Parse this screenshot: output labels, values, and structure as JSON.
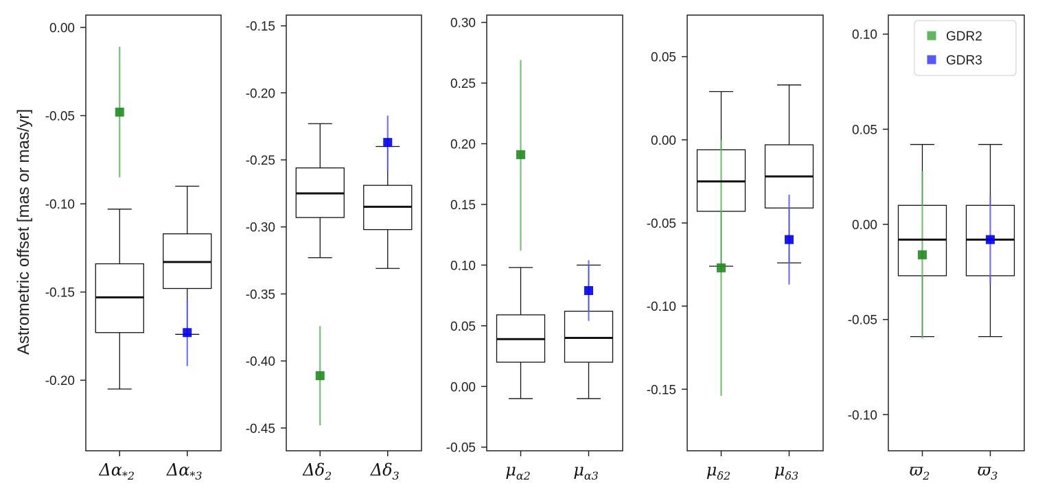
{
  "chart_data": {
    "type": "box",
    "ylabel": "Astrometric offset [mas or mas/yr]",
    "legend": {
      "placement": "top-right of last panel",
      "entries": [
        {
          "name": "GDR2",
          "color": "#2ca02c"
        },
        {
          "name": "GDR3",
          "color": "#1f1fff"
        }
      ]
    },
    "colors": {
      "gdr2": "#228b22",
      "gdr3": "#0000ee",
      "gdr2_err": "#5cb85c",
      "gdr3_err": "#5b5bff",
      "box": "#111111"
    },
    "panels": [
      {
        "ylim": [
          -0.24,
          0.007
        ],
        "yticks": [
          "0.00",
          "-0.05",
          "-0.10",
          "-0.15",
          "-0.20"
        ],
        "ytick_values": [
          0.0,
          -0.05,
          -0.1,
          -0.15,
          -0.2
        ],
        "categories": [
          {
            "base": "Δα",
            "sub": "*2",
            "box": {
              "whislo": -0.205,
              "q1": -0.173,
              "med": -0.153,
              "q3": -0.134,
              "whishi": -0.103
            },
            "point": {
              "series": "GDR2",
              "value": -0.048,
              "err_lo": -0.085,
              "err_hi": -0.011
            }
          },
          {
            "base": "Δα",
            "sub": "*3",
            "box": {
              "whislo": -0.174,
              "q1": -0.148,
              "med": -0.133,
              "q3": -0.117,
              "whishi": -0.09
            },
            "point": {
              "series": "GDR3",
              "value": -0.173,
              "err_lo": -0.192,
              "err_hi": -0.154
            }
          }
        ]
      },
      {
        "ylim": [
          -0.467,
          -0.142
        ],
        "yticks": [
          "-0.15",
          "-0.20",
          "-0.25",
          "-0.30",
          "-0.35",
          "-0.40",
          "-0.45"
        ],
        "ytick_values": [
          -0.15,
          -0.2,
          -0.25,
          -0.3,
          -0.35,
          -0.4,
          -0.45
        ],
        "categories": [
          {
            "base": "Δδ",
            "sub": "2",
            "box": {
              "whislo": -0.323,
              "q1": -0.293,
              "med": -0.275,
              "q3": -0.256,
              "whishi": -0.223
            },
            "point": {
              "series": "GDR2",
              "value": -0.411,
              "err_lo": -0.448,
              "err_hi": -0.374
            }
          },
          {
            "base": "Δδ",
            "sub": "3",
            "box": {
              "whislo": -0.331,
              "q1": -0.302,
              "med": -0.285,
              "q3": -0.269,
              "whishi": -0.24
            },
            "point": {
              "series": "GDR3",
              "value": -0.237,
              "err_lo": -0.258,
              "err_hi": -0.217
            }
          }
        ]
      },
      {
        "ylim": [
          -0.053,
          0.306
        ],
        "yticks": [
          "0.30",
          "0.25",
          "0.20",
          "0.15",
          "0.10",
          "0.05",
          "0.00",
          "-0.05"
        ],
        "ytick_values": [
          0.3,
          0.25,
          0.2,
          0.15,
          0.1,
          0.05,
          0.0,
          -0.05
        ],
        "categories": [
          {
            "base": "μ",
            "sub": "α2",
            "box": {
              "whislo": -0.01,
              "q1": 0.02,
              "med": 0.039,
              "q3": 0.059,
              "whishi": 0.098
            },
            "point": {
              "series": "GDR2",
              "value": 0.191,
              "err_lo": 0.112,
              "err_hi": 0.269
            }
          },
          {
            "base": "μ",
            "sub": "α3",
            "box": {
              "whislo": -0.01,
              "q1": 0.02,
              "med": 0.04,
              "q3": 0.062,
              "whishi": 0.1
            },
            "point": {
              "series": "GDR3",
              "value": 0.079,
              "err_lo": 0.054,
              "err_hi": 0.104
            }
          }
        ]
      },
      {
        "ylim": [
          -0.187,
          0.075
        ],
        "yticks": [
          "0.05",
          "0.00",
          "-0.05",
          "-0.10",
          "-0.15"
        ],
        "ytick_values": [
          0.05,
          0.0,
          -0.05,
          -0.1,
          -0.15
        ],
        "categories": [
          {
            "base": "μ",
            "sub": "δ2",
            "box": {
              "whislo": -0.076,
              "q1": -0.043,
              "med": -0.025,
              "q3": -0.006,
              "whishi": 0.029
            },
            "point": {
              "series": "GDR2",
              "value": -0.077,
              "err_lo": -0.154,
              "err_hi": 0.0
            }
          },
          {
            "base": "μ",
            "sub": "δ3",
            "box": {
              "whislo": -0.074,
              "q1": -0.041,
              "med": -0.022,
              "q3": -0.003,
              "whishi": 0.033
            },
            "point": {
              "series": "GDR3",
              "value": -0.06,
              "err_lo": -0.087,
              "err_hi": -0.033
            }
          }
        ]
      },
      {
        "ylim": [
          -0.119,
          0.11
        ],
        "yticks": [
          "0.10",
          "0.05",
          "0.00",
          "-0.05",
          "-0.10"
        ],
        "ytick_values": [
          0.1,
          0.05,
          0.0,
          -0.05,
          -0.1
        ],
        "categories": [
          {
            "base": "ϖ",
            "sub": "2",
            "box": {
              "whislo": -0.059,
              "q1": -0.027,
              "med": -0.008,
              "q3": 0.01,
              "whishi": 0.042
            },
            "point": {
              "series": "GDR2",
              "value": -0.016,
              "err_lo": -0.06,
              "err_hi": 0.028
            }
          },
          {
            "base": "ϖ",
            "sub": "3",
            "box": {
              "whislo": -0.059,
              "q1": -0.027,
              "med": -0.008,
              "q3": 0.01,
              "whishi": 0.042
            },
            "point": {
              "series": "GDR3",
              "value": -0.008,
              "err_lo": -0.031,
              "err_hi": 0.015
            }
          }
        ]
      }
    ]
  }
}
